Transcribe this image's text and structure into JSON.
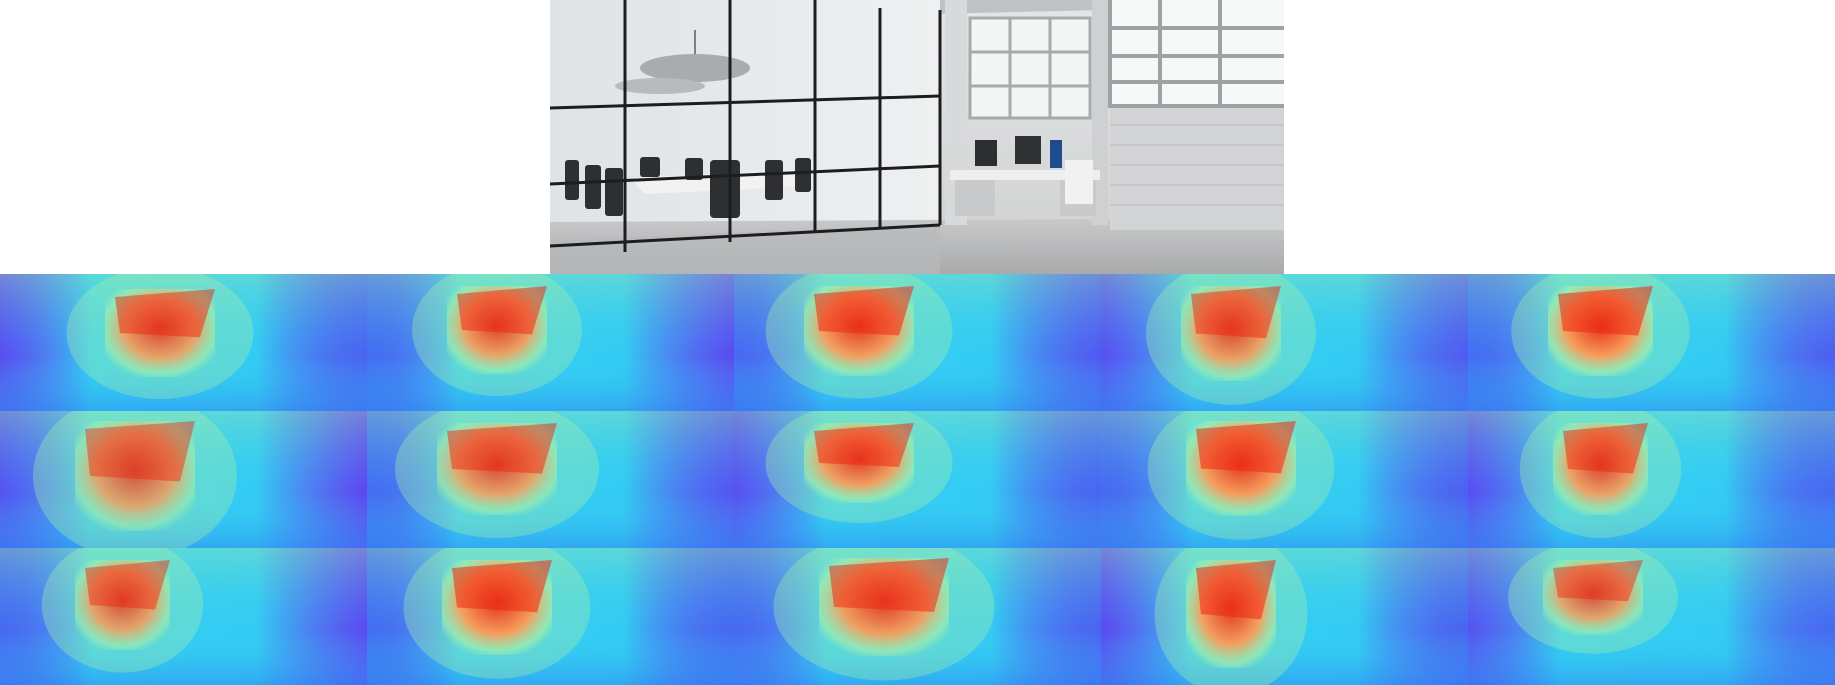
{
  "source_image": {
    "subject": "office-interior-photo",
    "icon": "photo-icon"
  },
  "heatmap_grid": {
    "rows": 3,
    "cols": 5,
    "colormap": "rainbow",
    "colors": {
      "low": "#7a1df0",
      "mid_low": "#2f8bf2",
      "mid": "#34d6f2",
      "mid_high": "#a8f0a8",
      "high": "#ff9a55",
      "peak": "#ee2a12"
    },
    "cells": [
      {
        "id": "r1c1",
        "hot_level": 0.85
      },
      {
        "id": "r1c2",
        "hot_level": 0.88
      },
      {
        "id": "r1c3",
        "hot_level": 0.92
      },
      {
        "id": "r1c4",
        "hot_level": 0.86
      },
      {
        "id": "r1c5",
        "hot_level": 0.95
      },
      {
        "id": "r2c1",
        "hot_level": 0.78
      },
      {
        "id": "r2c2",
        "hot_level": 0.84
      },
      {
        "id": "r2c3",
        "hot_level": 0.9
      },
      {
        "id": "r2c4",
        "hot_level": 0.93
      },
      {
        "id": "r2c5",
        "hot_level": 0.87
      },
      {
        "id": "r3c1",
        "hot_level": 0.82
      },
      {
        "id": "r3c2",
        "hot_level": 0.94
      },
      {
        "id": "r3c3",
        "hot_level": 0.9
      },
      {
        "id": "r3c4",
        "hot_level": 0.92
      },
      {
        "id": "r3c5",
        "hot_level": 0.8
      }
    ]
  }
}
